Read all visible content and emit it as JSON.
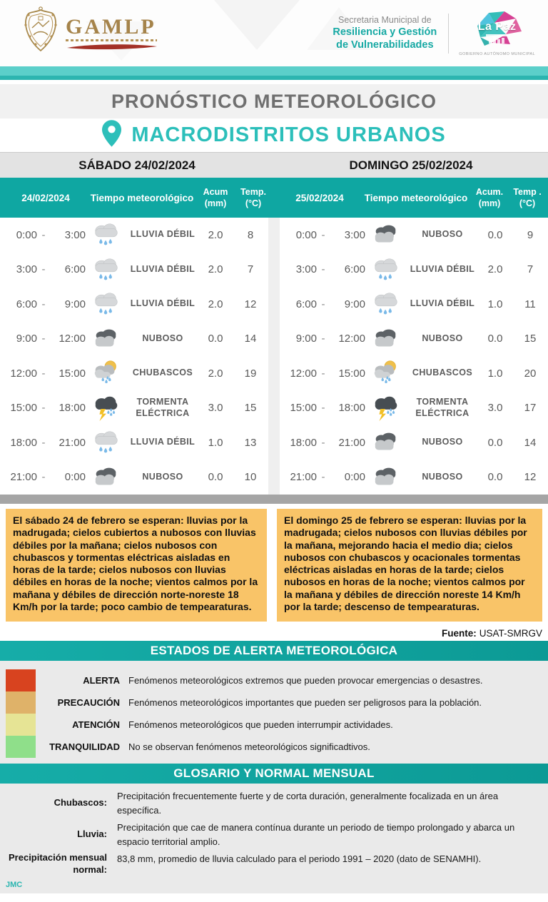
{
  "header": {
    "gamlp_acronym": "GAMLP",
    "secretaria_line1": "Secretaria Municipal de",
    "secretaria_line2": "Resiliencia y Gestión",
    "secretaria_line3": "de Vulnerabilidades",
    "lapaz_logo_text": "La Paz",
    "lapaz_caption": "GOBIERNO AUTÓNOMO MUNICIPAL"
  },
  "title": "PRONÓSTICO METEOROLÓGICO",
  "subtitle": "MACRODISTRITOS URBANOS",
  "days": [
    {
      "band_title": "SÁBADO 24/02/2024",
      "columns": {
        "date": "24/02/2024",
        "weather": "Tiempo meteorológico",
        "acum_l1": "Acum",
        "acum_l2": "(mm)",
        "temp_l1": "Temp.",
        "temp_l2": "(°C)"
      },
      "rows": [
        {
          "from": "0:00",
          "to": "3:00",
          "icon": "lluvia-debil",
          "cond": "LLUVIA DÉBIL",
          "acum": "2.0",
          "temp": "8"
        },
        {
          "from": "3:00",
          "to": "6:00",
          "icon": "lluvia-debil",
          "cond": "LLUVIA DÉBIL",
          "acum": "2.0",
          "temp": "7"
        },
        {
          "from": "6:00",
          "to": "9:00",
          "icon": "lluvia-debil",
          "cond": "LLUVIA DÉBIL",
          "acum": "2.0",
          "temp": "12"
        },
        {
          "from": "9:00",
          "to": "12:00",
          "icon": "nuboso",
          "cond": "NUBOSO",
          "acum": "0.0",
          "temp": "14"
        },
        {
          "from": "12:00",
          "to": "15:00",
          "icon": "chubascos",
          "cond": "CHUBASCOS",
          "acum": "2.0",
          "temp": "19"
        },
        {
          "from": "15:00",
          "to": "18:00",
          "icon": "tormenta-electrica",
          "cond": "TORMENTA ELÉCTRICA",
          "acum": "3.0",
          "temp": "15"
        },
        {
          "from": "18:00",
          "to": "21:00",
          "icon": "lluvia-debil",
          "cond": "LLUVIA DÉBIL",
          "acum": "1.0",
          "temp": "13"
        },
        {
          "from": "21:00",
          "to": "0:00",
          "icon": "nuboso",
          "cond": "NUBOSO",
          "acum": "0.0",
          "temp": "10"
        }
      ],
      "summary": "El sábado 24 de febrero se esperan: lluvias por la madrugada; cielos cubiertos a nubosos con lluvias débiles por la mañana; cielos nubosos con chubascos  y tormentas eléctricas aisladas en horas de la tarde; cielos nubosos con lluvias débiles en horas de la noche; vientos calmos por la mañana y débiles de dirección norte-noreste 18 Km/h por la tarde; poco cambio de tempearaturas."
    },
    {
      "band_title": "DOMINGO 25/02/2024",
      "columns": {
        "date": "25/02/2024",
        "weather": "Tiempo meteorológico",
        "acum_l1": "Acum.",
        "acum_l2": "(mm)",
        "temp_l1": "Temp .",
        "temp_l2": "(°C)"
      },
      "rows": [
        {
          "from": "0:00",
          "to": "3:00",
          "icon": "nuboso",
          "cond": "NUBOSO",
          "acum": "0.0",
          "temp": "9"
        },
        {
          "from": "3:00",
          "to": "6:00",
          "icon": "lluvia-debil",
          "cond": "LLUVIA DÉBIL",
          "acum": "2.0",
          "temp": "7"
        },
        {
          "from": "6:00",
          "to": "9:00",
          "icon": "lluvia-debil",
          "cond": "LLUVIA DÉBIL",
          "acum": "1.0",
          "temp": "11"
        },
        {
          "from": "9:00",
          "to": "12:00",
          "icon": "nuboso",
          "cond": "NUBOSO",
          "acum": "0.0",
          "temp": "15"
        },
        {
          "from": "12:00",
          "to": "15:00",
          "icon": "chubascos",
          "cond": "CHUBASCOS",
          "acum": "1.0",
          "temp": "20"
        },
        {
          "from": "15:00",
          "to": "18:00",
          "icon": "tormenta-electrica",
          "cond": "TORMENTA ELÉCTRICA",
          "acum": "3.0",
          "temp": "17"
        },
        {
          "from": "18:00",
          "to": "21:00",
          "icon": "nuboso",
          "cond": "NUBOSO",
          "acum": "0.0",
          "temp": "14"
        },
        {
          "from": "21:00",
          "to": "0:00",
          "icon": "nuboso",
          "cond": "NUBOSO",
          "acum": "0.0",
          "temp": "12"
        }
      ],
      "summary": "El domingo 25 de febrero se esperan: lluvias por la madrugada; cielos nubosos con lluvias  débiles por la mañana, mejorando hacia el medio dia; cielos nubosos con chubascos  y ocacionales tormentas eléctricas aisladas en horas de la tarde; cielos nubosos en horas de la noche; vientos calmos por la mañana y débiles de dirección noreste 14 Km/h por la tarde; descenso de tempearaturas."
    }
  ],
  "fuente_label": "Fuente:",
  "fuente_value": "USAT-SMRGV",
  "alerts": {
    "title": "ESTADOS DE ALERTA METEOROLÓGICA",
    "items": [
      {
        "label": "ALERTA",
        "color": "#d8431f",
        "text": "Fenómenos meteorológicos extremos que pueden provocar emergencias o desastres."
      },
      {
        "label": "PRECAUCIÓN",
        "color": "#dfb269",
        "text": "Fenómenos meteorológicos importantes que pueden ser peligrosos para la población."
      },
      {
        "label": "ATENCIÓN",
        "color": "#e6e495",
        "text": "Fenómenos meteorológicos que pueden interrumpir actividades."
      },
      {
        "label": "TRANQUILIDAD",
        "color": "#8fdf8a",
        "text": "No se observan fenómenos meteorológicos significadtivos."
      }
    ]
  },
  "glossary": {
    "title": "GLOSARIO Y NORMAL MENSUAL",
    "items": [
      {
        "term": "Chubascos:",
        "definition": "Precipitación frecuentemente fuerte y de corta duración, generalmente focalizada en un área específica."
      },
      {
        "term": "Lluvia:",
        "definition": "Precipitación que cae de manera contínua durante un periodo de tiempo prolongado y abarca un espacio territorial amplio."
      },
      {
        "term": "Precipitación mensual normal:",
        "definition": "83,8 mm, promedio de lluvia calculado para el periodo 1991 – 2020 (dato de SENAMHI)."
      }
    ],
    "credit": "JMC"
  },
  "colors": {
    "accent_teal": "#0fa7a2",
    "summary_orange": "#f9c468",
    "divider_gray": "#a5a5a5"
  }
}
